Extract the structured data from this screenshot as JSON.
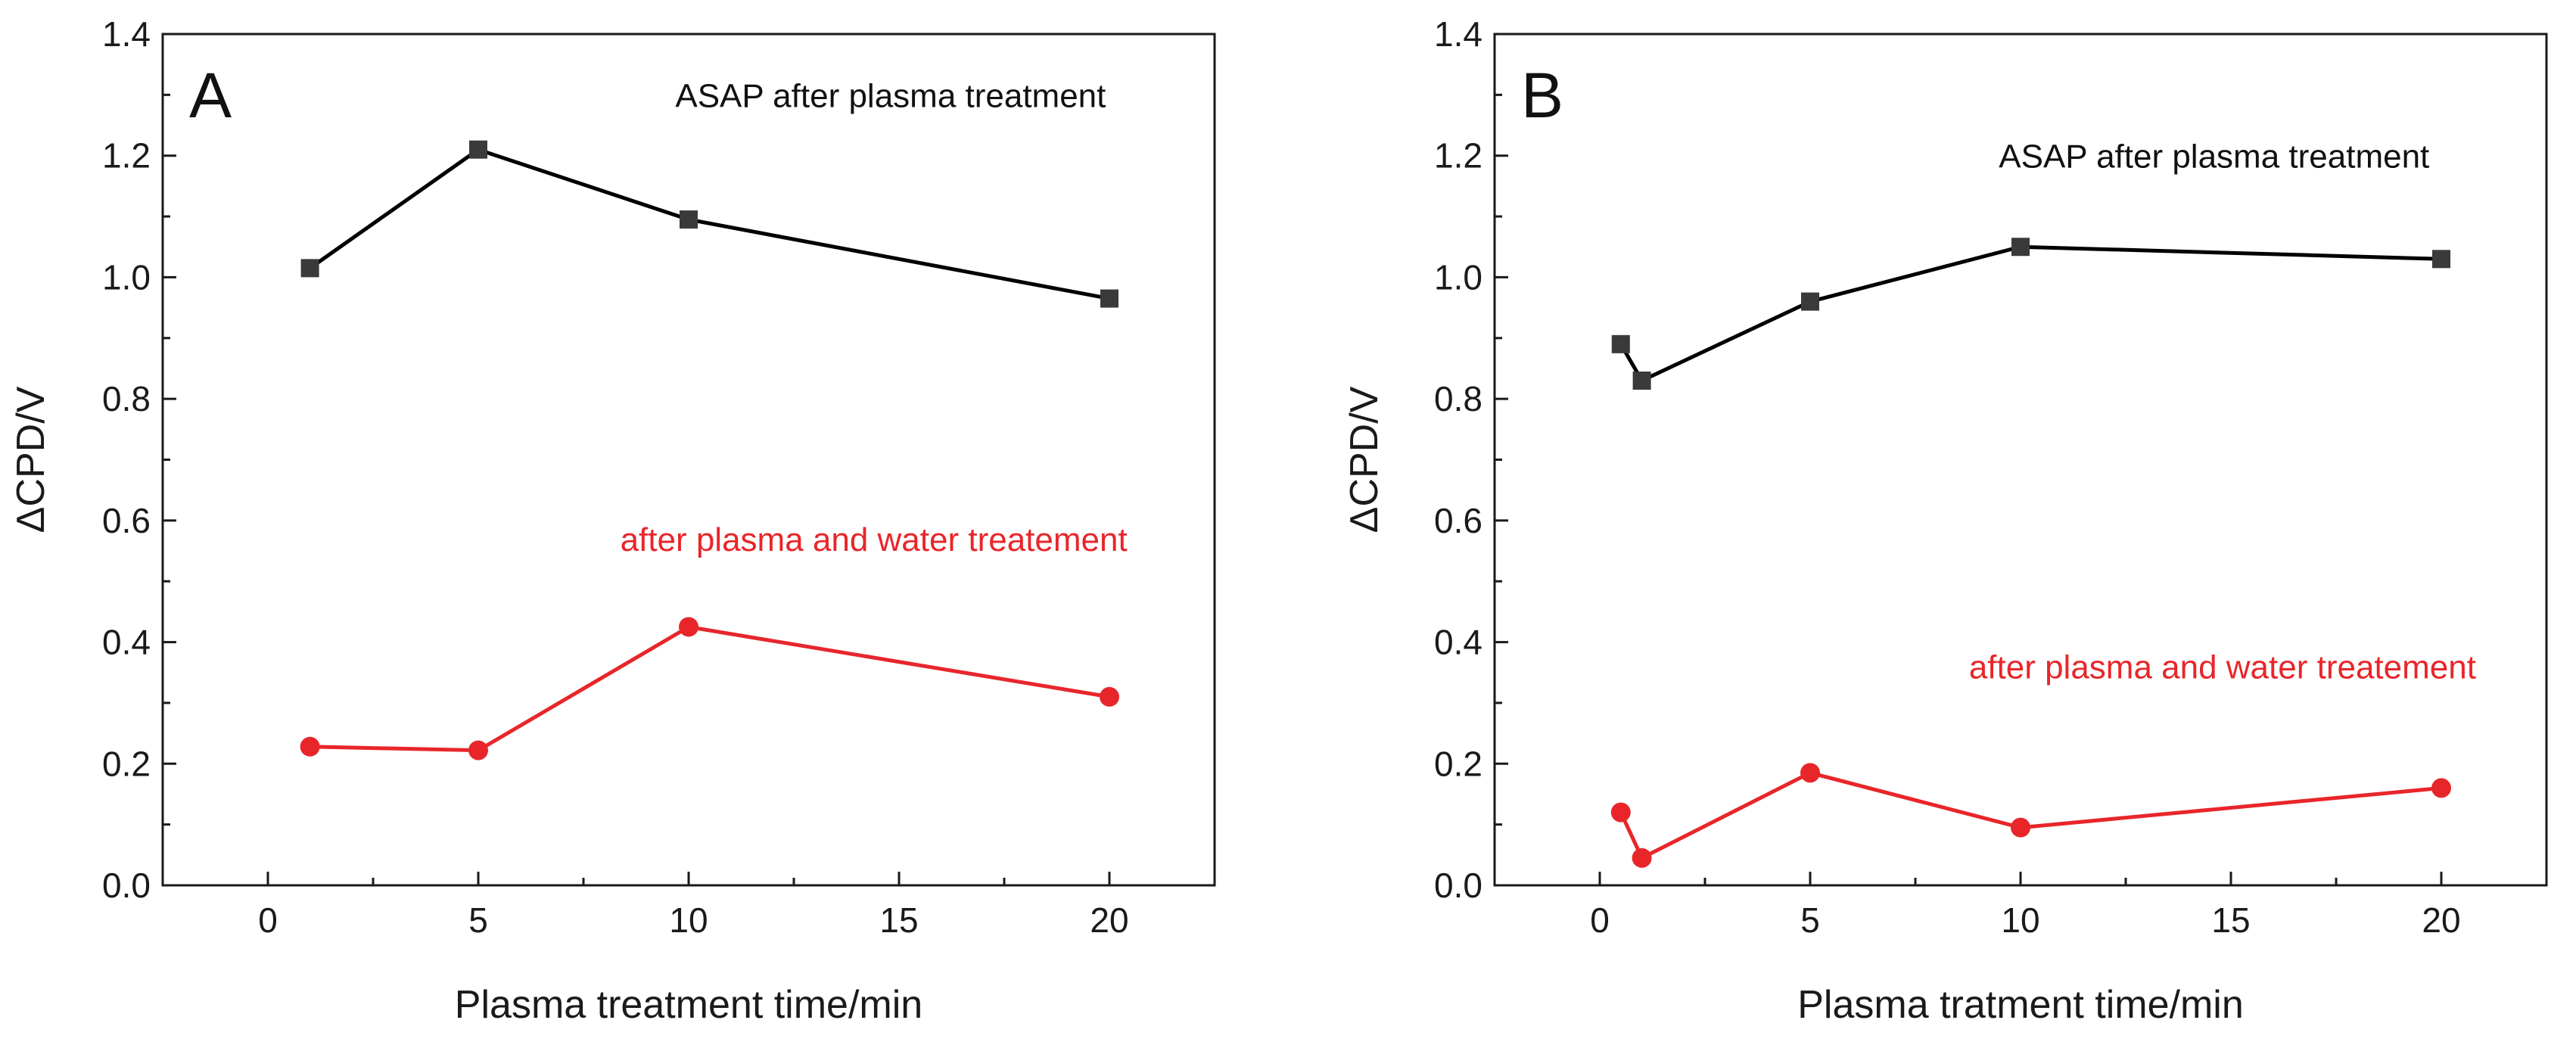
{
  "chart_data": [
    {
      "type": "line",
      "panel_label": "A",
      "xlabel": "Plasma treatment time/min",
      "ylabel": "ΔCPD/V",
      "xlim": [
        -2.5,
        22.5
      ],
      "ylim": [
        0.0,
        1.4
      ],
      "x_ticks": [
        0,
        5,
        10,
        15,
        20
      ],
      "y_ticks": [
        0.0,
        0.2,
        0.4,
        0.6,
        0.8,
        1.0,
        1.2,
        1.4
      ],
      "x_tick_labels": [
        "0",
        "5",
        "10",
        "15",
        "20"
      ],
      "y_tick_labels": [
        "0.0",
        "0.2",
        "0.4",
        "0.6",
        "0.8",
        "1.0",
        "1.2",
        "1.4"
      ],
      "series": [
        {
          "name": "ASAP after plasma treatment",
          "color": "#3a3a3a",
          "marker": "square",
          "x": [
            1,
            5,
            10,
            20
          ],
          "values": [
            1.015,
            1.21,
            1.095,
            0.965
          ]
        },
        {
          "name": "after plasma and water treatement",
          "color": "#e8262a",
          "marker": "circle",
          "x": [
            1,
            5,
            10,
            20
          ],
          "values": [
            0.228,
            0.222,
            0.425,
            0.31
          ]
        }
      ],
      "annotations": [
        {
          "text": "ASAP after plasma treatment",
          "color": "#111111",
          "x": 14.8,
          "y": 1.3
        },
        {
          "text": "after plasma and water treatement",
          "color": "#e8262a",
          "x": 14.4,
          "y": 0.57
        }
      ]
    },
    {
      "type": "line",
      "panel_label": "B",
      "xlabel": "Plasma tratment time/min",
      "ylabel": "ΔCPD/V",
      "xlim": [
        -2.5,
        22.5
      ],
      "ylim": [
        0.0,
        1.4
      ],
      "x_ticks": [
        0,
        5,
        10,
        15,
        20
      ],
      "y_ticks": [
        0.0,
        0.2,
        0.4,
        0.6,
        0.8,
        1.0,
        1.2,
        1.4
      ],
      "x_tick_labels": [
        "0",
        "5",
        "10",
        "15",
        "20"
      ],
      "y_tick_labels": [
        "0.0",
        "0.2",
        "0.4",
        "0.6",
        "0.8",
        "1.0",
        "1.2",
        "1.4"
      ],
      "series": [
        {
          "name": "ASAP after plasma treatment",
          "color": "#3a3a3a",
          "marker": "square",
          "x": [
            0.5,
            1,
            5,
            10,
            20
          ],
          "values": [
            0.89,
            0.83,
            0.96,
            1.05,
            1.03
          ]
        },
        {
          "name": "after plasma and water treatement",
          "color": "#e8262a",
          "marker": "circle",
          "x": [
            0.5,
            1,
            5,
            10,
            20
          ],
          "values": [
            0.12,
            0.045,
            0.185,
            0.095,
            0.16
          ]
        }
      ],
      "annotations": [
        {
          "text": "ASAP after plasma treatment",
          "color": "#111111",
          "x": 14.6,
          "y": 1.2
        },
        {
          "text": "after plasma and water treatement",
          "color": "#e8262a",
          "x": 14.8,
          "y": 0.36
        }
      ]
    }
  ]
}
